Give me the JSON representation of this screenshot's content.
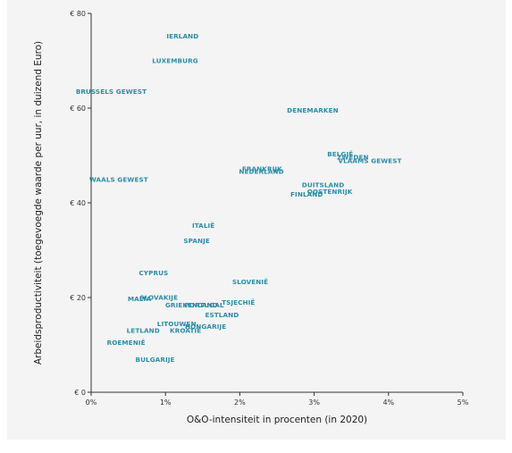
{
  "chart_data": {
    "type": "scatter",
    "xlabel": "O&O-intensiteit in procenten (in 2020)",
    "ylabel": "Arbeidsproductiviteit (toegevoegde waarde per uur, in duizend Euro)",
    "xlim": [
      0,
      5
    ],
    "ylim": [
      0,
      80
    ],
    "x_ticks": [
      0,
      1,
      2,
      3,
      4,
      5
    ],
    "x_tick_labels": [
      "0%",
      "1%",
      "2%",
      "3%",
      "4%",
      "5%"
    ],
    "y_ticks": [
      0,
      20,
      40,
      60,
      80
    ],
    "y_tick_labels": [
      "€ 0",
      "€ 20",
      "€ 40",
      "€ 60",
      "€ 80"
    ],
    "grid": false,
    "points": [
      {
        "label": "IERLAND",
        "x": 1.23,
        "y": 75.2
      },
      {
        "label": "LUXEMBURG",
        "x": 1.13,
        "y": 70.0
      },
      {
        "label": "BRUSSELS GEWEST",
        "x": 0.27,
        "y": 63.5
      },
      {
        "label": "DENEMARKEN",
        "x": 2.98,
        "y": 59.5
      },
      {
        "label": "BELGIË",
        "x": 3.35,
        "y": 50.3
      },
      {
        "label": "ZWEDEN",
        "x": 3.52,
        "y": 49.6
      },
      {
        "label": "VLAAMS GEWEST",
        "x": 3.75,
        "y": 48.9
      },
      {
        "label": "FRANKRIJK",
        "x": 2.3,
        "y": 47.2
      },
      {
        "label": "NEDERLAND",
        "x": 2.29,
        "y": 46.6
      },
      {
        "label": "WAALS GEWEST",
        "x": 0.37,
        "y": 44.9
      },
      {
        "label": "DUITSLAND",
        "x": 3.12,
        "y": 43.8
      },
      {
        "label": "OOSTENRIJK",
        "x": 3.21,
        "y": 42.4
      },
      {
        "label": "FINLAND",
        "x": 2.9,
        "y": 41.8
      },
      {
        "label": "ITALIË",
        "x": 1.51,
        "y": 35.2
      },
      {
        "label": "SPANJE",
        "x": 1.42,
        "y": 32.0
      },
      {
        "label": "CYPRUS",
        "x": 0.84,
        "y": 25.2
      },
      {
        "label": "SLOVENIË",
        "x": 2.14,
        "y": 23.3
      },
      {
        "label": "MALTA",
        "x": 0.65,
        "y": 19.7
      },
      {
        "label": "SLOVAKIJE",
        "x": 0.91,
        "y": 20.0
      },
      {
        "label": "TSJECHIË",
        "x": 1.98,
        "y": 19.0
      },
      {
        "label": "GRIEKENLAND",
        "x": 1.35,
        "y": 18.4
      },
      {
        "label": "PORTUGAL",
        "x": 1.52,
        "y": 18.4
      },
      {
        "label": "ESTLAND",
        "x": 1.76,
        "y": 16.3
      },
      {
        "label": "LITOUWEN",
        "x": 1.15,
        "y": 14.4
      },
      {
        "label": "HONGARIJE",
        "x": 1.54,
        "y": 13.9
      },
      {
        "label": "LETLAND",
        "x": 0.7,
        "y": 13.0
      },
      {
        "label": "KROATIË",
        "x": 1.27,
        "y": 13.0
      },
      {
        "label": "ROEMENIË",
        "x": 0.47,
        "y": 10.5
      },
      {
        "label": "BULGARIJE",
        "x": 0.86,
        "y": 6.9
      }
    ]
  }
}
